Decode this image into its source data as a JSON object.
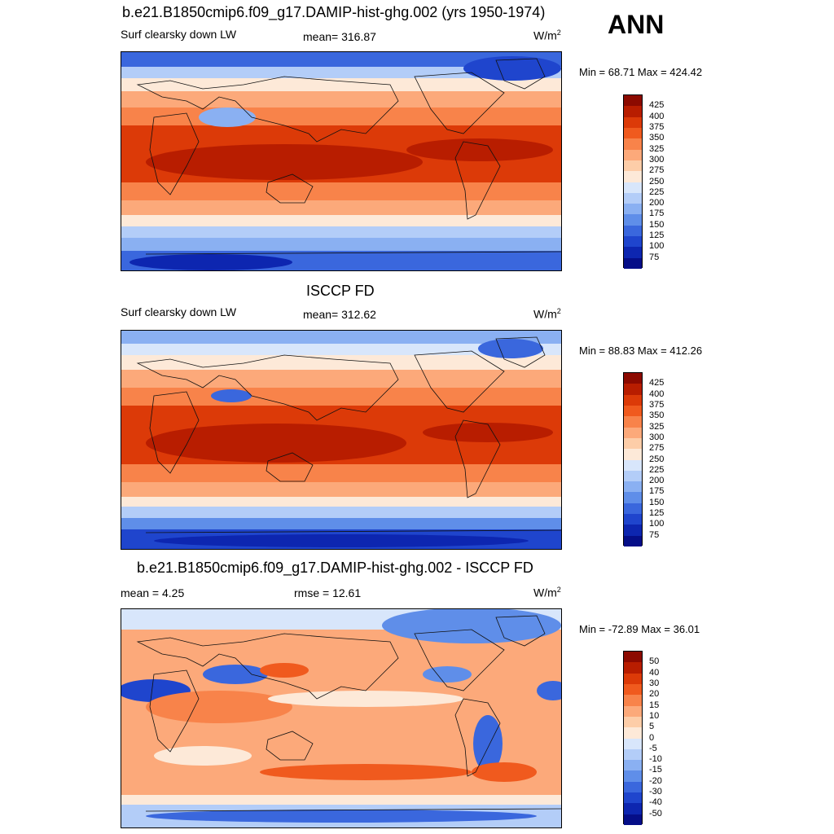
{
  "season": "ANN",
  "units_base": "W/m",
  "units_exp": "2",
  "panels": [
    {
      "title": "b.e21.B1850cmip6.f09_g17.DAMIP-hist-ghg.002 (yrs 1950-1974)",
      "left_label": "Surf clearsky down LW",
      "center_label": "mean= 316.87",
      "minmax": "Min =  68.71 Max = 424.42",
      "colorbar_labels": [
        "425",
        "400",
        "375",
        "350",
        "325",
        "300",
        "275",
        "250",
        "225",
        "200",
        "175",
        "150",
        "125",
        "100",
        "75"
      ],
      "colorbar_colors": [
        "#8c0a00",
        "#b81d00",
        "#dc3a08",
        "#f05a1e",
        "#f8834a",
        "#fca97a",
        "#fdcda8",
        "#fde9d8",
        "#d8e6fb",
        "#b3cdf8",
        "#8ab0f2",
        "#5f8ee9",
        "#3a67dd",
        "#1f45cd",
        "#0d26b0",
        "#050e88"
      ]
    },
    {
      "title": "ISCCP FD",
      "left_label": "Surf clearsky down LW",
      "center_label": "mean= 312.62",
      "minmax": "Min =  88.83 Max = 412.26",
      "colorbar_labels": [
        "425",
        "400",
        "375",
        "350",
        "325",
        "300",
        "275",
        "250",
        "225",
        "200",
        "175",
        "150",
        "125",
        "100",
        "75"
      ],
      "colorbar_colors": [
        "#8c0a00",
        "#b81d00",
        "#dc3a08",
        "#f05a1e",
        "#f8834a",
        "#fca97a",
        "#fdcda8",
        "#fde9d8",
        "#d8e6fb",
        "#b3cdf8",
        "#8ab0f2",
        "#5f8ee9",
        "#3a67dd",
        "#1f45cd",
        "#0d26b0",
        "#050e88"
      ]
    },
    {
      "title": "b.e21.B1850cmip6.f09_g17.DAMIP-hist-ghg.002 - ISCCP FD",
      "left_label": "mean =   4.25",
      "center_label": "rmse =  12.61",
      "minmax": "Min = -72.89 Max =  36.01",
      "colorbar_labels": [
        "50",
        "40",
        "30",
        "20",
        "15",
        "10",
        "5",
        "0",
        "-5",
        "-10",
        "-15",
        "-20",
        "-30",
        "-40",
        "-50"
      ],
      "colorbar_colors": [
        "#8c0a00",
        "#b81d00",
        "#dc3a08",
        "#f05a1e",
        "#f8834a",
        "#fca97a",
        "#fdcda8",
        "#fde9d8",
        "#d8e6fb",
        "#b3cdf8",
        "#8ab0f2",
        "#5f8ee9",
        "#3a67dd",
        "#1f45cd",
        "#0d26b0",
        "#050e88"
      ]
    }
  ]
}
